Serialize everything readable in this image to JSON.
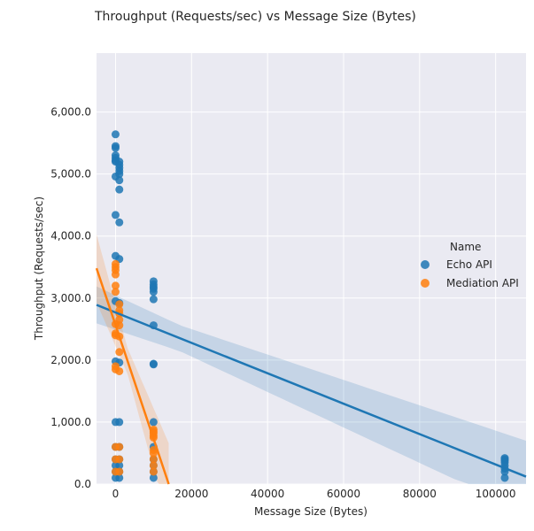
{
  "chart_data": {
    "type": "scatter",
    "title": "Throughput (Requests/sec) vs Message Size (Bytes)",
    "xlabel": "Message Size (Bytes)",
    "ylabel": "Throughput (Requests/sec)",
    "xlim": [
      -5000,
      108000
    ],
    "ylim": [
      0,
      6950
    ],
    "x_ticks": [
      0,
      20000,
      40000,
      60000,
      80000,
      100000
    ],
    "x_tick_labels": [
      "0",
      "20000",
      "40000",
      "60000",
      "80000",
      "100000"
    ],
    "y_ticks": [
      0,
      1000,
      2000,
      3000,
      4000,
      5000,
      6000
    ],
    "y_tick_labels": [
      "0.0",
      "1,000.0",
      "2,000.0",
      "3,000.0",
      "4,000.0",
      "5,000.0",
      "6,000.0"
    ],
    "grid": true,
    "legend": {
      "title": "Name",
      "placement": "right"
    },
    "series": [
      {
        "name": "Echo API",
        "color": "#1f77b4",
        "points": [
          [
            0,
            5640
          ],
          [
            0,
            5450
          ],
          [
            0,
            5420
          ],
          [
            0,
            5300
          ],
          [
            0,
            5260
          ],
          [
            0,
            5220
          ],
          [
            0,
            5200
          ],
          [
            0,
            4960
          ],
          [
            0,
            4340
          ],
          [
            0,
            3680
          ],
          [
            0,
            2950
          ],
          [
            0,
            1980
          ],
          [
            0,
            1000
          ],
          [
            0,
            600
          ],
          [
            0,
            400
          ],
          [
            0,
            300
          ],
          [
            0,
            200
          ],
          [
            0,
            100
          ],
          [
            1000,
            5200
          ],
          [
            1000,
            5150
          ],
          [
            1000,
            5100
          ],
          [
            1000,
            5050
          ],
          [
            1000,
            5000
          ],
          [
            1000,
            4900
          ],
          [
            1000,
            4750
          ],
          [
            1000,
            4220
          ],
          [
            1000,
            3630
          ],
          [
            1000,
            2920
          ],
          [
            1000,
            1960
          ],
          [
            1000,
            1000
          ],
          [
            1000,
            600
          ],
          [
            1000,
            400
          ],
          [
            1000,
            300
          ],
          [
            1000,
            200
          ],
          [
            1000,
            100
          ],
          [
            10000,
            3270
          ],
          [
            10000,
            3220
          ],
          [
            10000,
            3180
          ],
          [
            10000,
            3150
          ],
          [
            10000,
            3100
          ],
          [
            10000,
            2980
          ],
          [
            10000,
            2560
          ],
          [
            10000,
            1940
          ],
          [
            10000,
            1930
          ],
          [
            10000,
            1000
          ],
          [
            10000,
            600
          ],
          [
            10000,
            400
          ],
          [
            10000,
            300
          ],
          [
            10000,
            200
          ],
          [
            10000,
            100
          ],
          [
            102400,
            420
          ],
          [
            102400,
            400
          ],
          [
            102400,
            380
          ],
          [
            102400,
            350
          ],
          [
            102400,
            300
          ],
          [
            102400,
            250
          ],
          [
            102400,
            200
          ],
          [
            102400,
            100
          ]
        ],
        "fit": {
          "x": [
            -5000,
            108000
          ],
          "y": [
            2890,
            120
          ]
        }
      },
      {
        "name": "Mediation API",
        "color": "#ff7f0e",
        "points": [
          [
            0,
            3550
          ],
          [
            0,
            3500
          ],
          [
            0,
            3450
          ],
          [
            0,
            3380
          ],
          [
            0,
            3200
          ],
          [
            0,
            3100
          ],
          [
            0,
            2580
          ],
          [
            0,
            2430
          ],
          [
            0,
            2400
          ],
          [
            0,
            1900
          ],
          [
            0,
            1850
          ],
          [
            0,
            600
          ],
          [
            0,
            400
          ],
          [
            0,
            200
          ],
          [
            1000,
            2900
          ],
          [
            1000,
            2800
          ],
          [
            1000,
            2750
          ],
          [
            1000,
            2650
          ],
          [
            1000,
            2560
          ],
          [
            1000,
            2380
          ],
          [
            1000,
            2130
          ],
          [
            1000,
            1820
          ],
          [
            1000,
            600
          ],
          [
            1000,
            400
          ],
          [
            1000,
            200
          ],
          [
            10000,
            880
          ],
          [
            10000,
            850
          ],
          [
            10000,
            820
          ],
          [
            10000,
            780
          ],
          [
            10000,
            750
          ],
          [
            10000,
            550
          ],
          [
            10000,
            500
          ],
          [
            10000,
            400
          ],
          [
            10000,
            300
          ],
          [
            10000,
            200
          ]
        ],
        "fit": {
          "x": [
            -5000,
            14000
          ],
          "y": [
            3480,
            0
          ]
        }
      }
    ]
  }
}
